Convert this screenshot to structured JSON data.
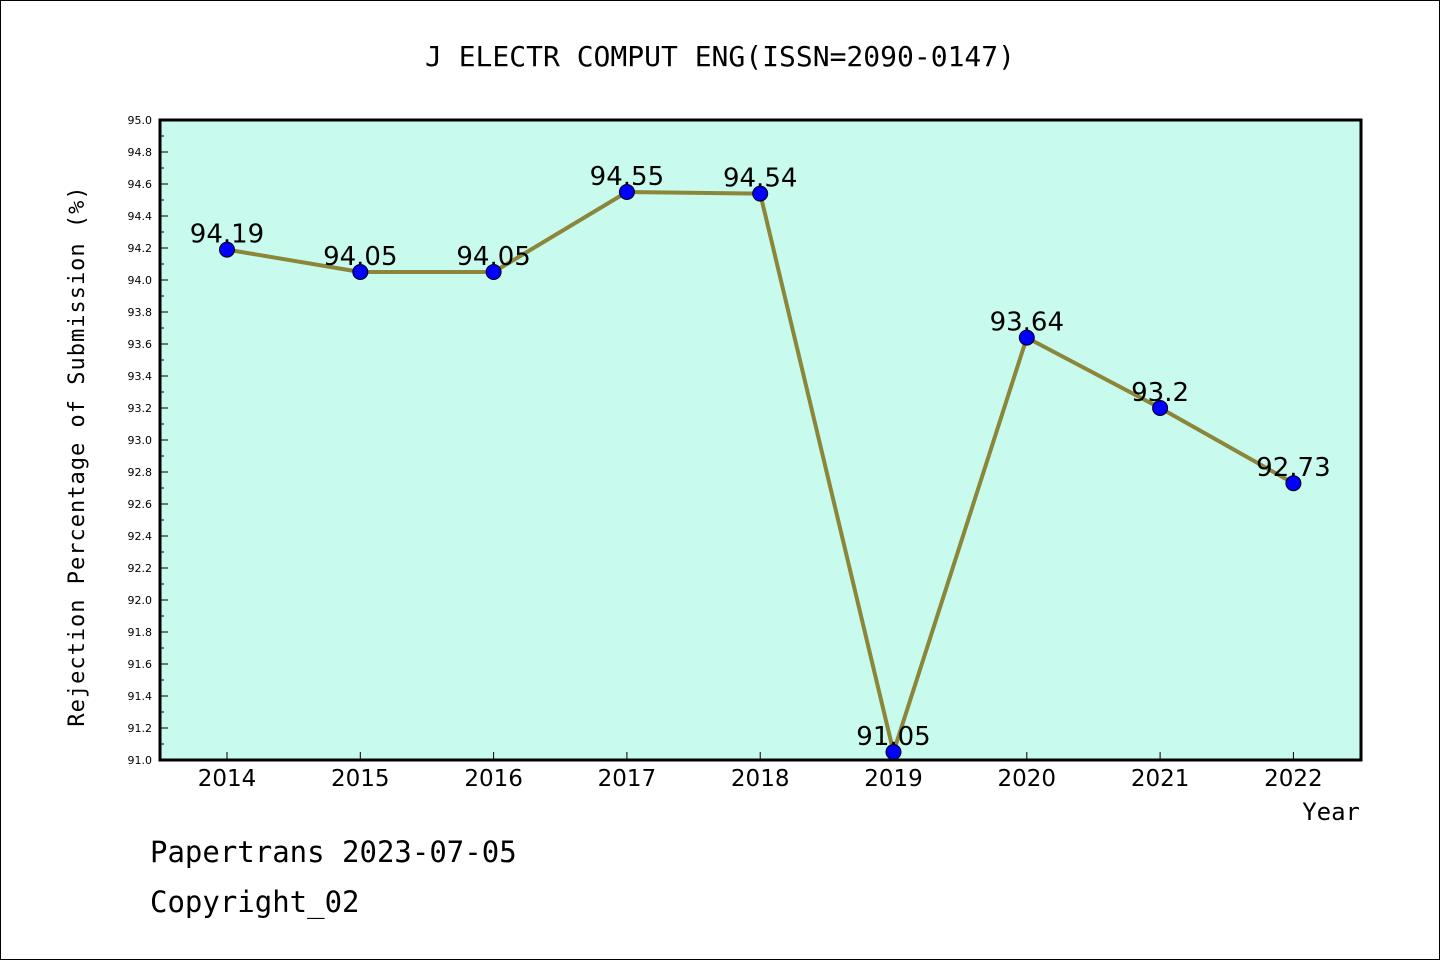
{
  "chart_data": {
    "type": "line",
    "title": "J ELECTR COMPUT ENG(ISSN=2090-0147)",
    "xlabel": "Year",
    "ylabel": "Rejection Percentage of Submission (%)",
    "categories": [
      "2014",
      "2015",
      "2016",
      "2017",
      "2018",
      "2019",
      "2020",
      "2021",
      "2022"
    ],
    "values": [
      94.19,
      94.05,
      94.05,
      94.55,
      94.54,
      91.05,
      93.64,
      93.2,
      92.73
    ],
    "value_labels": [
      "94.19",
      "94.05",
      "94.05",
      "94.55",
      "94.54",
      "91.05",
      "93.64",
      "93.2",
      "92.73"
    ],
    "ylim": [
      91.0,
      95.0
    ],
    "yticks": [
      "91.0",
      "91.2",
      "91.4",
      "91.6",
      "91.8",
      "92.0",
      "92.2",
      "92.4",
      "92.6",
      "92.8",
      "93.0",
      "93.2",
      "93.4",
      "93.6",
      "93.8",
      "94.0",
      "94.2",
      "94.4",
      "94.6",
      "94.8",
      "95.0"
    ],
    "grid": false,
    "colors": {
      "plot_background": "#c8fbed",
      "line": "#8b8639",
      "marker": "#0000ff"
    }
  },
  "footer": {
    "line1": "Papertrans 2023-07-05",
    "line2": "Copyright_02"
  }
}
